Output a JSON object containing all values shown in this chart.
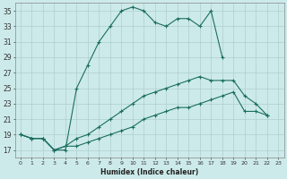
{
  "xlabel": "Humidex (Indice chaleur)",
  "ylabel": "",
  "background_color": "#cdeaea",
  "grid_color": "#aecece",
  "line_color": "#1a6e60",
  "xlim": [
    -0.5,
    23.5
  ],
  "ylim": [
    16,
    36
  ],
  "xticks": [
    0,
    1,
    2,
    3,
    4,
    5,
    6,
    7,
    8,
    9,
    10,
    11,
    12,
    13,
    14,
    15,
    16,
    17,
    18,
    19,
    20,
    21,
    22,
    23
  ],
  "yticks": [
    17,
    19,
    21,
    23,
    25,
    27,
    29,
    31,
    33,
    35
  ],
  "line1_x": [
    0,
    1,
    2,
    3,
    4,
    5,
    6,
    7,
    8,
    9,
    10,
    11,
    12,
    13,
    14,
    15,
    16,
    17,
    18
  ],
  "line1_y": [
    19,
    18.5,
    18.5,
    17,
    17,
    25,
    28,
    31,
    33,
    35,
    35.5,
    35,
    33.5,
    33,
    34,
    34,
    33,
    35,
    29
  ],
  "line2_x": [
    0,
    1,
    2,
    3,
    4,
    5,
    6,
    7,
    8,
    9,
    10,
    11,
    12,
    13,
    14,
    15,
    16,
    17,
    18,
    19,
    20,
    21,
    22
  ],
  "line2_y": [
    19,
    18.5,
    18.5,
    17,
    17.5,
    18.5,
    19,
    20,
    21,
    22,
    23,
    24,
    24.5,
    25,
    25.5,
    26,
    26.5,
    26,
    26,
    26,
    24,
    23,
    21.5
  ],
  "line3_x": [
    0,
    1,
    2,
    3,
    4,
    5,
    6,
    7,
    8,
    9,
    10,
    11,
    12,
    13,
    14,
    15,
    16,
    17,
    18,
    19,
    20,
    21,
    22
  ],
  "line3_y": [
    19,
    18.5,
    18.5,
    17,
    17.5,
    17.5,
    18,
    18.5,
    19,
    19.5,
    20,
    21,
    21.5,
    22,
    22.5,
    22.5,
    23,
    23.5,
    24,
    24.5,
    22,
    22,
    21.5
  ]
}
